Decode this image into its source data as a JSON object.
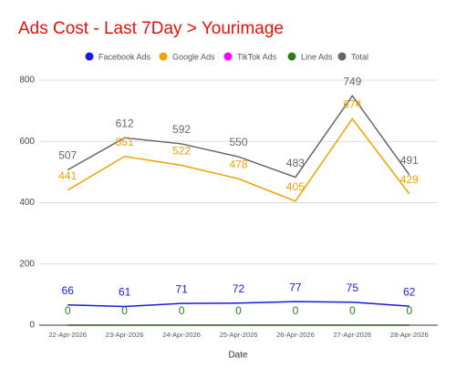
{
  "chart_data": {
    "type": "line",
    "title": "Ads Cost - Last 7Day > Yourimage",
    "x_label": "Date",
    "categories": [
      "22-Apr-2026",
      "23-Apr-2026",
      "24-Apr-2026",
      "25-Apr-2026",
      "26-Apr-2026",
      "27-Apr-2026",
      "28-Apr-2026"
    ],
    "series": [
      {
        "name": "Facebook Ads",
        "color": "#1a1ae6",
        "values": [
          66,
          61,
          71,
          72,
          77,
          75,
          62
        ],
        "data_labels": true
      },
      {
        "name": "Google Ads",
        "color": "#f4a100",
        "values": [
          441,
          551,
          522,
          478,
          405,
          674,
          429
        ],
        "data_labels": true
      },
      {
        "name": "TikTok Ads",
        "color": "#ff00ff",
        "values": [
          0,
          0,
          0,
          0,
          0,
          0,
          0
        ],
        "data_labels": false
      },
      {
        "name": "Line Ads",
        "color": "#2e7d1a",
        "values": [
          0,
          0,
          0,
          0,
          0,
          0,
          0
        ],
        "data_labels": true
      },
      {
        "name": "Total",
        "color": "#666666",
        "values": [
          507,
          612,
          592,
          550,
          483,
          749,
          491
        ],
        "data_labels": true
      }
    ],
    "ylim": [
      0,
      800
    ],
    "yticks": [
      0,
      200,
      400,
      600,
      800
    ],
    "grid": true,
    "legend": "top"
  }
}
